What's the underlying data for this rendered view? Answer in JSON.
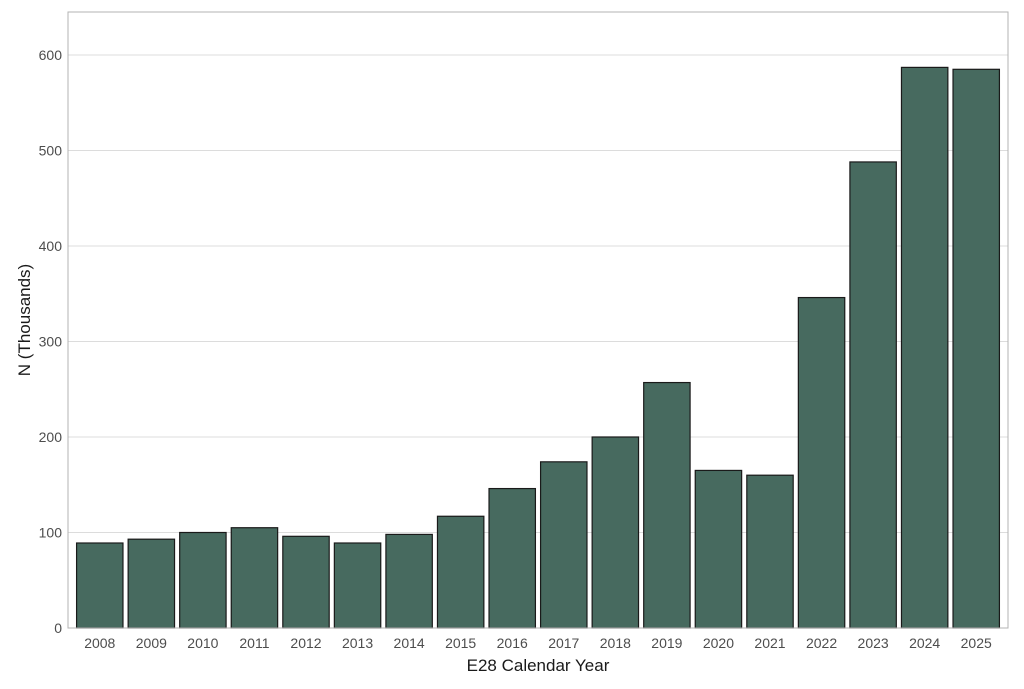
{
  "chart_data": {
    "type": "bar",
    "title": "",
    "xlabel": "E28 Calendar Year",
    "ylabel": "N (Thousands)",
    "categories": [
      "2008",
      "2009",
      "2010",
      "2011",
      "2012",
      "2013",
      "2014",
      "2015",
      "2016",
      "2017",
      "2018",
      "2019",
      "2020",
      "2021",
      "2022",
      "2023",
      "2024",
      "2025"
    ],
    "values": [
      89,
      93,
      100,
      105,
      96,
      89,
      98,
      117,
      146,
      174,
      200,
      257,
      165,
      160,
      346,
      488,
      587,
      585
    ],
    "yticks": [
      "0",
      "100",
      "200",
      "300",
      "400",
      "500",
      "600"
    ],
    "ylim": [
      0,
      645
    ],
    "grid": "horizontal",
    "bar_color": "#476a5f",
    "panel_border_color": "#b3b3b3"
  }
}
